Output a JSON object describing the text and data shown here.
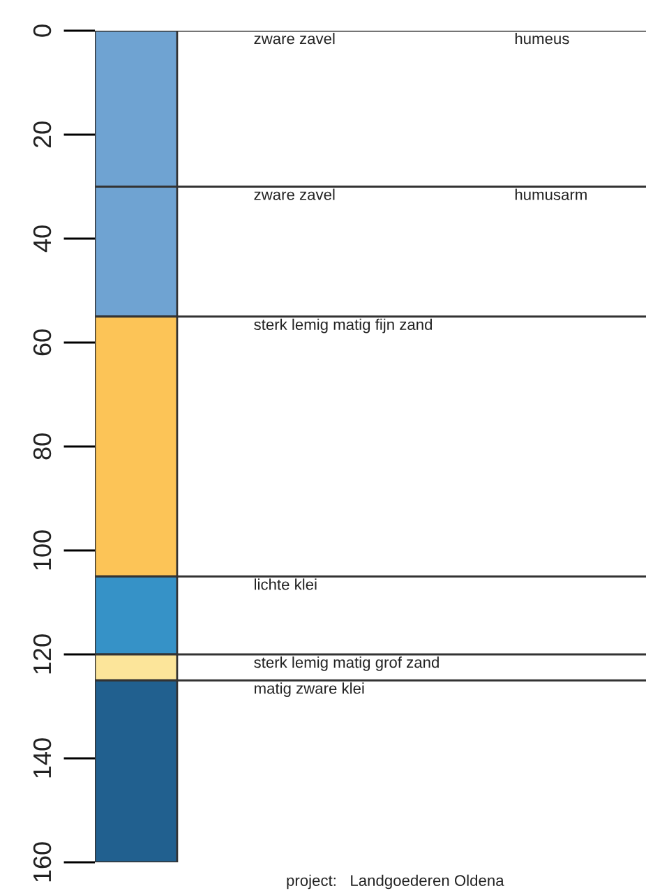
{
  "chart_data": {
    "type": "bar",
    "stacked": true,
    "categories": [
      null
    ],
    "series": [
      {
        "color": "#6fa3d2",
        "values": [
          30
        ]
      },
      {
        "color": "#6fa3d2",
        "values": [
          25
        ]
      },
      {
        "color": "#fcc457",
        "values": [
          50
        ]
      },
      {
        "color": "#3692c7",
        "values": [
          15
        ]
      },
      {
        "color": "#fce59a",
        "values": [
          5
        ]
      },
      {
        "color": "#21608f",
        "values": [
          35
        ]
      }
    ],
    "ylim": [
      160,
      0
    ],
    "yticks": [
      0,
      20,
      40,
      60,
      80,
      100,
      120,
      140,
      160
    ],
    "ref_lines": [
      {
        "axis": "y",
        "value": 0,
        "label": "zware zavel"
      },
      {
        "axis": "y",
        "value": 30,
        "label": "zware zavel"
      },
      {
        "axis": "y",
        "value": 55,
        "label": "sterk lemig matig fijn zand"
      },
      {
        "axis": "y",
        "value": 105,
        "label": "lichte klei"
      },
      {
        "axis": "y",
        "value": 120,
        "label": "sterk lemig matig grof zand"
      },
      {
        "axis": "y",
        "value": 125,
        "label": "matig zware klei"
      }
    ],
    "annotations": [
      {
        "text": "humeus",
        "y": 0
      },
      {
        "text": "humusarm",
        "y": 30
      },
      "project:   Landgoederen Oldena"
    ],
    "grid": false,
    "legend": false,
    "tick_labels": "y"
  }
}
